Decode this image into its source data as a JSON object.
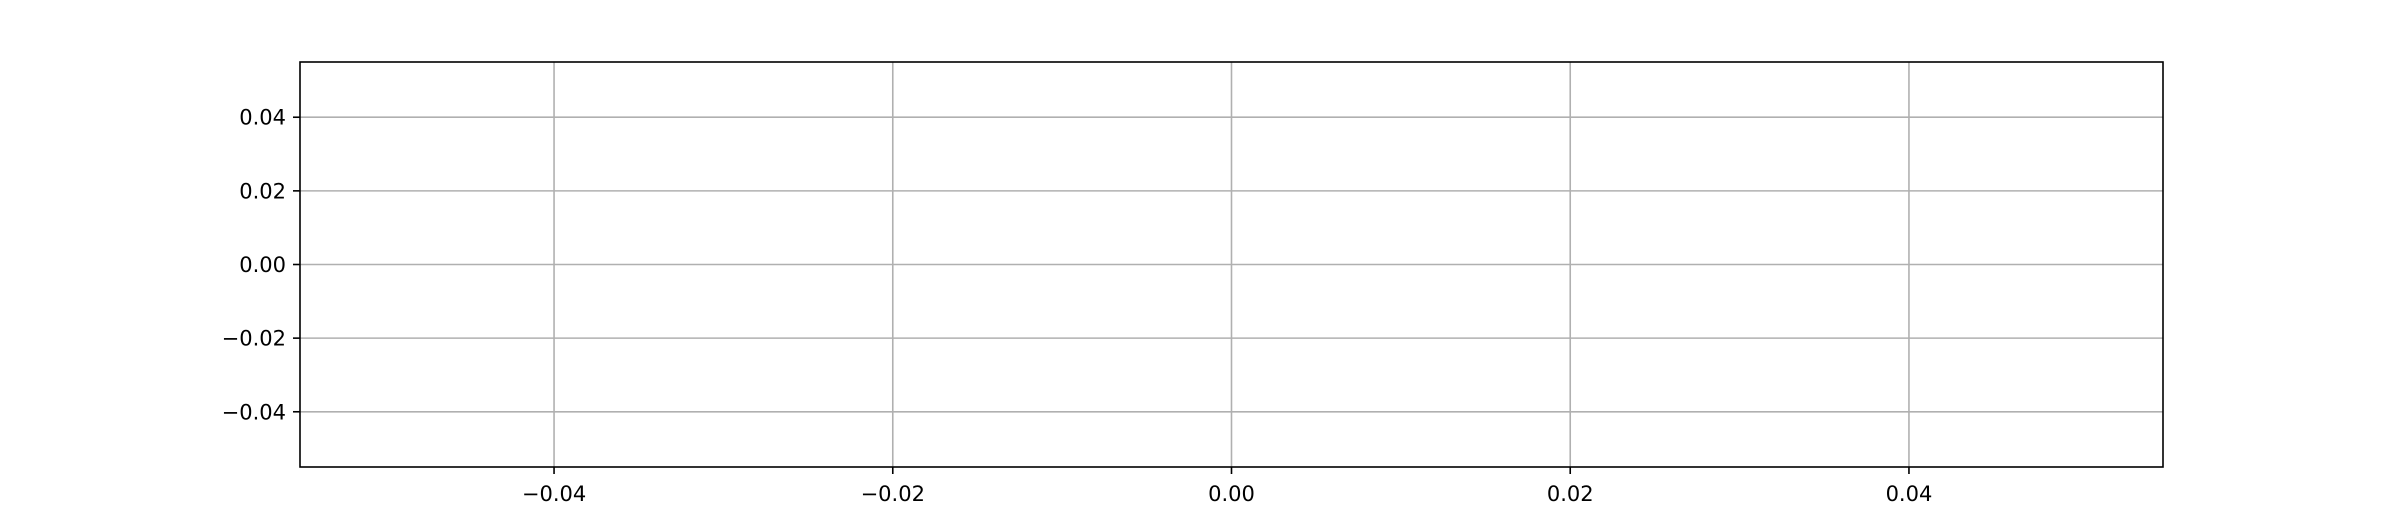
{
  "chart_data": {
    "type": "line",
    "title": "",
    "xlabel": "",
    "ylabel": "",
    "series": [],
    "xlim": [
      -0.055,
      0.055
    ],
    "ylim": [
      -0.055,
      0.055
    ],
    "xticks": [
      -0.04,
      -0.02,
      0.0,
      0.02,
      0.04
    ],
    "xtick_labels": [
      "−0.04",
      "−0.02",
      "0.00",
      "0.02",
      "0.04"
    ],
    "yticks": [
      0.04,
      0.02,
      0.0,
      -0.02,
      -0.04
    ],
    "ytick_labels": [
      "0.04",
      "0.02",
      "0.00",
      "−0.02",
      "−0.04"
    ],
    "grid": true,
    "legend": "none"
  },
  "colors": {
    "grid": "#b0b0b0",
    "axes": "#000000",
    "background": "#ffffff"
  }
}
